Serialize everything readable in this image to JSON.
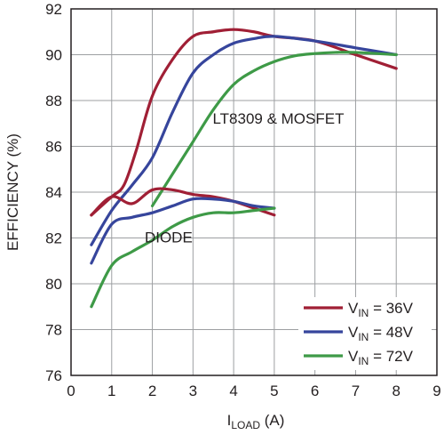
{
  "chart_data": {
    "type": "line",
    "ylabel": "EFFICIENCY (%)",
    "xlabel": {
      "main": "I",
      "sub": "LOAD",
      "suffix": " (A)"
    },
    "xlim": [
      0,
      9
    ],
    "ylim": [
      76,
      92
    ],
    "xticks": [
      0,
      1,
      2,
      3,
      4,
      5,
      6,
      7,
      8,
      9
    ],
    "yticks": [
      76,
      78,
      80,
      82,
      84,
      86,
      88,
      90,
      92
    ],
    "grid": true,
    "legend_position": "bottom-right",
    "annotations": [
      {
        "text": "LT8309 & MOSFET",
        "x": 5.1,
        "y": 87
      },
      {
        "text": "DIODE",
        "x": 2.4,
        "y": 81.8
      }
    ],
    "series": [
      {
        "name": {
          "main": "V",
          "sub": "IN",
          "suffix": " = 36V"
        },
        "group": "LT8309 & MOSFET",
        "color": "#a01f35",
        "x": [
          0.5,
          1,
          1.3,
          1.6,
          2,
          2.5,
          3,
          3.5,
          4,
          4.5,
          5,
          6,
          7,
          8
        ],
        "y": [
          83.0,
          83.8,
          84.3,
          85.8,
          88.2,
          89.8,
          90.8,
          91.0,
          91.1,
          91.0,
          90.8,
          90.6,
          90.0,
          89.4
        ]
      },
      {
        "name": {
          "main": "V",
          "sub": "IN",
          "suffix": " = 48V"
        },
        "group": "LT8309 & MOSFET",
        "color": "#36459c",
        "x": [
          0.5,
          1,
          1.5,
          2,
          2.5,
          3,
          3.5,
          4,
          4.5,
          5,
          6,
          7,
          8
        ],
        "y": [
          81.7,
          83.2,
          84.3,
          85.5,
          87.5,
          89.2,
          90.0,
          90.5,
          90.7,
          90.8,
          90.6,
          90.3,
          90.0
        ]
      },
      {
        "name": {
          "main": "V",
          "sub": "IN",
          "suffix": " = 72V"
        },
        "group": "LT8309 & MOSFET",
        "color": "#3e9a47",
        "x": [
          2,
          2.5,
          3,
          3.5,
          4,
          4.5,
          5,
          5.5,
          6,
          6.5,
          7,
          8
        ],
        "y": [
          83.4,
          84.8,
          86.2,
          87.6,
          88.7,
          89.3,
          89.7,
          89.95,
          90.05,
          90.1,
          90.1,
          90.0
        ]
      },
      {
        "name": {
          "main": "V",
          "sub": "IN",
          "suffix": " = 36V"
        },
        "group": "DIODE",
        "color": "#a01f35",
        "x": [
          0.5,
          1,
          1.5,
          2,
          2.5,
          3,
          3.5,
          4,
          4.5,
          5
        ],
        "y": [
          83.0,
          83.8,
          83.5,
          84.1,
          84.1,
          83.9,
          83.8,
          83.6,
          83.3,
          83.0
        ]
      },
      {
        "name": {
          "main": "V",
          "sub": "IN",
          "suffix": " = 48V"
        },
        "group": "DIODE",
        "color": "#36459c",
        "x": [
          0.5,
          1,
          1.5,
          2,
          2.5,
          3,
          3.5,
          4,
          4.5,
          5
        ],
        "y": [
          80.9,
          82.6,
          82.9,
          83.1,
          83.4,
          83.7,
          83.7,
          83.6,
          83.4,
          83.3
        ]
      },
      {
        "name": {
          "main": "V",
          "sub": "IN",
          "suffix": " = 72V"
        },
        "group": "DIODE",
        "color": "#3e9a47",
        "x": [
          0.5,
          1,
          1.5,
          2,
          2.5,
          3,
          3.5,
          4,
          4.5,
          5
        ],
        "y": [
          79.0,
          80.8,
          81.4,
          81.9,
          82.5,
          82.9,
          83.1,
          83.1,
          83.2,
          83.3
        ]
      }
    ],
    "legend": [
      {
        "main": "V",
        "sub": "IN",
        "suffix": " = 36V",
        "color": "#a01f35"
      },
      {
        "main": "V",
        "sub": "IN",
        "suffix": " = 48V",
        "color": "#36459c"
      },
      {
        "main": "V",
        "sub": "IN",
        "suffix": " = 72V",
        "color": "#3e9a47"
      }
    ]
  }
}
